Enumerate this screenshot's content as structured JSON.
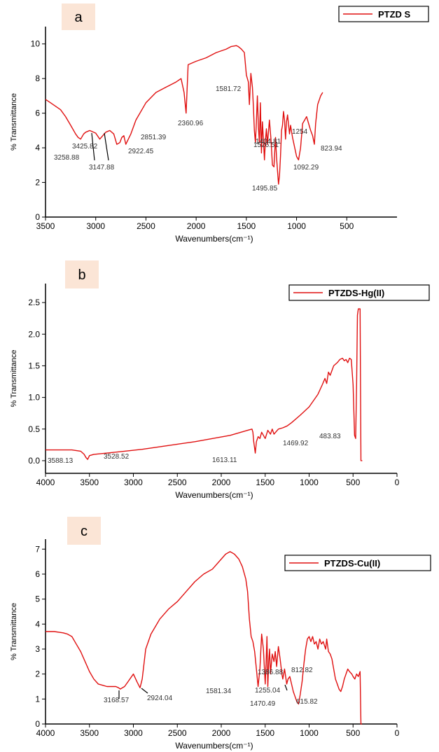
{
  "chart_data": [
    {
      "panel": "a",
      "type": "line",
      "title": "",
      "xlabel": "Wavenumbers(cm⁻¹)",
      "ylabel": "% Transmittance",
      "legend": "PTZD S",
      "legend_position": "top-right",
      "color": "#e01010",
      "xlim": [
        3500,
        0
      ],
      "ylim": [
        0,
        11
      ],
      "xticks": [
        3500,
        3000,
        2500,
        2000,
        1500,
        1000,
        500
      ],
      "xtick_labels": [
        "3500",
        "3000",
        "2500",
        "2000",
        "1500",
        "1000",
        "500"
      ],
      "yticks": [
        0,
        2,
        4,
        6,
        8,
        10
      ],
      "grid": false,
      "x": [
        3500,
        3450,
        3400,
        3350,
        3300,
        3250,
        3200,
        3175,
        3150,
        3120,
        3100,
        3060,
        3040,
        3000,
        2960,
        2900,
        2860,
        2820,
        2800,
        2790,
        2760,
        2740,
        2720,
        2700,
        2650,
        2600,
        2500,
        2400,
        2300,
        2200,
        2150,
        2120,
        2100,
        2080,
        2000,
        1900,
        1800,
        1700,
        1650,
        1600,
        1581,
        1550,
        1520,
        1500,
        1480,
        1470,
        1455,
        1440,
        1430,
        1420,
        1410,
        1400,
        1390,
        1380,
        1370,
        1360,
        1350,
        1340,
        1330,
        1320,
        1310,
        1300,
        1290,
        1270,
        1255,
        1240,
        1225,
        1210,
        1200,
        1190,
        1180,
        1170,
        1160,
        1150,
        1140,
        1130,
        1120,
        1110,
        1100,
        1090,
        1070,
        1060,
        1040,
        1000,
        980,
        960,
        940,
        900,
        880,
        860,
        840,
        823,
        810,
        790,
        760,
        740
      ],
      "y": [
        6.8,
        6.6,
        6.4,
        6.2,
        5.8,
        5.3,
        4.8,
        4.6,
        4.5,
        4.8,
        4.9,
        5.0,
        4.95,
        4.85,
        4.5,
        4.9,
        5.0,
        4.8,
        4.4,
        4.2,
        4.3,
        4.6,
        4.7,
        4.2,
        4.8,
        5.6,
        6.6,
        7.2,
        7.5,
        7.8,
        8.0,
        7.2,
        6.0,
        8.8,
        9.0,
        9.2,
        9.5,
        9.7,
        9.85,
        9.9,
        9.85,
        9.7,
        9.5,
        8.2,
        7.8,
        6.5,
        8.3,
        7.5,
        6.4,
        5.0,
        4.3,
        5.5,
        7.0,
        5.2,
        4.3,
        6.6,
        3.7,
        5.5,
        4.5,
        3.3,
        4.4,
        5.1,
        4.2,
        5.6,
        4.5,
        3.0,
        2.9,
        4.6,
        3.5,
        2.7,
        1.9,
        2.4,
        3.5,
        5.0,
        5.3,
        6.1,
        5.6,
        4.5,
        5.5,
        5.9,
        4.8,
        5.3,
        4.6,
        3.5,
        3.3,
        4.0,
        5.4,
        5.8,
        5.4,
        5.0,
        4.7,
        4.2,
        5.4,
        6.5,
        7.0,
        7.2
      ],
      "annotations": [
        {
          "label": "1581.72",
          "x": 1581.72
        },
        {
          "label": "2360.96",
          "x": 2360.96
        },
        {
          "label": "2851.39",
          "x": 2851.39
        },
        {
          "label": "2922.45",
          "x": 2922.45
        },
        {
          "label": "3425.82",
          "x": 3425.82
        },
        {
          "label": "3258.88",
          "x": 3258.88
        },
        {
          "label": "3147.88",
          "x": 3147.88
        },
        {
          "label": "1404.81",
          "x": 1404.81
        },
        {
          "label": "1254",
          "x": 1254
        },
        {
          "label": "1526.51",
          "x": 1526.51
        },
        {
          "label": "1495.85",
          "x": 1495.85
        },
        {
          "label": "1092.29",
          "x": 1092.29
        },
        {
          "label": "823.94",
          "x": 823.94
        }
      ]
    },
    {
      "panel": "b",
      "type": "line",
      "title": "",
      "xlabel": "Wavenumbers(cm⁻¹)",
      "ylabel": "% Transmittance",
      "legend": "PTZDS-Hg(II)",
      "legend_position": "top-right",
      "color": "#e01010",
      "xlim": [
        4000,
        0
      ],
      "ylim": [
        -0.2,
        2.8
      ],
      "xticks": [
        4000,
        3500,
        3000,
        2500,
        2000,
        1500,
        1000,
        500,
        0
      ],
      "xtick_labels": [
        "4000",
        "3500",
        "3000",
        "2500",
        "2000",
        "1500",
        "1000",
        "500",
        "0"
      ],
      "yticks": [
        0.0,
        0.5,
        1.0,
        1.5,
        2.0,
        2.5
      ],
      "ytick_labels": [
        "0.0",
        "0.5",
        "1.0",
        "1.5",
        "2.0",
        "2.5"
      ],
      "grid": false,
      "x": [
        4000,
        3800,
        3700,
        3600,
        3560,
        3540,
        3520,
        3500,
        3450,
        3300,
        3100,
        2900,
        2700,
        2500,
        2300,
        2100,
        1900,
        1700,
        1650,
        1640,
        1630,
        1613,
        1600,
        1580,
        1560,
        1540,
        1500,
        1470,
        1440,
        1420,
        1400,
        1350,
        1300,
        1250,
        1200,
        1100,
        1000,
        950,
        900,
        850,
        820,
        800,
        780,
        760,
        720,
        680,
        650,
        620,
        600,
        580,
        560,
        540,
        520,
        500,
        483,
        470,
        460,
        450,
        440,
        430,
        420,
        410,
        400,
        395
      ],
      "y": [
        0.17,
        0.17,
        0.17,
        0.15,
        0.1,
        0.05,
        0.02,
        0.08,
        0.1,
        0.12,
        0.15,
        0.18,
        0.22,
        0.26,
        0.3,
        0.35,
        0.4,
        0.48,
        0.5,
        0.45,
        0.3,
        0.12,
        0.3,
        0.38,
        0.35,
        0.45,
        0.35,
        0.48,
        0.42,
        0.5,
        0.42,
        0.5,
        0.52,
        0.55,
        0.6,
        0.72,
        0.85,
        0.95,
        1.05,
        1.2,
        1.3,
        1.22,
        1.4,
        1.35,
        1.5,
        1.55,
        1.6,
        1.62,
        1.58,
        1.6,
        1.55,
        1.62,
        1.6,
        1.2,
        0.4,
        0.35,
        1.2,
        2.3,
        2.4,
        2.4,
        2.4,
        0.0,
        0.0,
        0.0
      ],
      "annotations": [
        {
          "label": "3588.13",
          "x": 3588.13
        },
        {
          "label": "3528.52",
          "x": 3528.52
        },
        {
          "label": "1613.11",
          "x": 1613.11
        },
        {
          "label": "1469.92",
          "x": 1469.92
        },
        {
          "label": "483.83",
          "x": 483.83
        }
      ]
    },
    {
      "panel": "c",
      "type": "line",
      "title": "",
      "xlabel": "Wavenumbers(cm⁻¹)",
      "ylabel": "% Transmittance",
      "legend": "PTZDS-Cu(II)",
      "legend_position": "top-right",
      "color": "#e01010",
      "xlim": [
        4000,
        0
      ],
      "ylim": [
        0,
        7.4
      ],
      "xticks": [
        4000,
        3500,
        3000,
        2500,
        2000,
        1500,
        1000,
        500,
        0
      ],
      "xtick_labels": [
        "4000",
        "3500",
        "3000",
        "2500",
        "2000",
        "1500",
        "1000",
        "500",
        "0"
      ],
      "yticks": [
        0,
        1,
        2,
        3,
        4,
        5,
        6,
        7
      ],
      "grid": false,
      "x": [
        4000,
        3900,
        3800,
        3750,
        3700,
        3650,
        3600,
        3550,
        3500,
        3450,
        3400,
        3350,
        3300,
        3250,
        3200,
        3168,
        3150,
        3100,
        3060,
        3020,
        3000,
        2960,
        2924,
        2900,
        2880,
        2860,
        2800,
        2700,
        2600,
        2500,
        2400,
        2300,
        2200,
        2100,
        2000,
        1950,
        1900,
        1850,
        1800,
        1760,
        1720,
        1700,
        1680,
        1660,
        1640,
        1620,
        1600,
        1581,
        1560,
        1540,
        1520,
        1500,
        1490,
        1480,
        1470,
        1460,
        1450,
        1440,
        1420,
        1400,
        1386,
        1370,
        1350,
        1330,
        1310,
        1300,
        1280,
        1255,
        1240,
        1220,
        1200,
        1180,
        1160,
        1140,
        1120,
        1100,
        1080,
        1060,
        1040,
        1020,
        1000,
        980,
        960,
        940,
        920,
        900,
        880,
        860,
        840,
        812,
        800,
        780,
        760,
        740,
        720,
        700,
        680,
        660,
        640,
        620,
        600,
        580,
        560,
        540,
        515,
        500,
        480,
        460,
        440,
        420,
        410,
        400
      ],
      "y": [
        3.7,
        3.7,
        3.65,
        3.6,
        3.5,
        3.2,
        2.9,
        2.5,
        2.1,
        1.8,
        1.6,
        1.55,
        1.5,
        1.5,
        1.5,
        1.45,
        1.4,
        1.5,
        1.7,
        1.9,
        2.0,
        1.7,
        1.45,
        1.8,
        2.4,
        3.0,
        3.6,
        4.2,
        4.6,
        4.9,
        5.3,
        5.7,
        6.0,
        6.2,
        6.6,
        6.8,
        6.9,
        6.8,
        6.6,
        6.3,
        5.8,
        5.3,
        4.2,
        3.5,
        3.3,
        2.9,
        2.2,
        1.5,
        2.2,
        3.6,
        3.0,
        1.6,
        2.4,
        3.5,
        1.5,
        2.5,
        3.0,
        2.0,
        2.8,
        2.5,
        2.9,
        2.3,
        3.1,
        2.6,
        2.0,
        1.8,
        2.2,
        1.6,
        1.8,
        1.9,
        1.6,
        1.3,
        1.1,
        0.9,
        0.8,
        1.2,
        1.7,
        2.4,
        3.0,
        3.4,
        3.5,
        3.3,
        3.5,
        3.2,
        3.3,
        3.0,
        3.4,
        3.2,
        3.3,
        3.0,
        3.4,
        2.9,
        2.8,
        2.6,
        2.2,
        1.8,
        1.6,
        1.4,
        1.3,
        1.5,
        1.8,
        2.0,
        2.2,
        2.1,
        2.0,
        1.9,
        1.8,
        2.0,
        1.9,
        2.1,
        0.0,
        0.0
      ],
      "annotations": [
        {
          "label": "3168.57",
          "x": 3168.57
        },
        {
          "label": "2924.04",
          "x": 2924.04
        },
        {
          "label": "1581.34",
          "x": 1581.34
        },
        {
          "label": "1386.88",
          "x": 1386.88
        },
        {
          "label": "1255.04",
          "x": 1255.04
        },
        {
          "label": "1470.49",
          "x": 1470.49
        },
        {
          "label": "812.82",
          "x": 812.82
        },
        {
          "label": "615.82",
          "x": 615.82
        }
      ]
    }
  ]
}
